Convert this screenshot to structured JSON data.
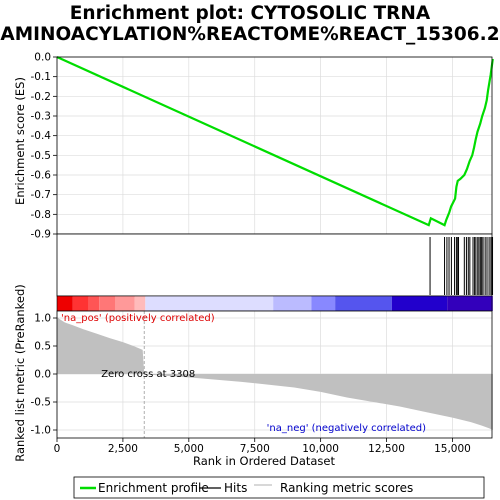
{
  "chart_data": {
    "type": "line",
    "title_line1": "Enrichment plot: CYTOSOLIC TRNA",
    "title_line2": "AMINOACYLATION%REACTOME%REACT_15306.2",
    "xlabel": "Rank in Ordered Dataset",
    "ylabel_top": "Enrichment score (ES)",
    "ylabel_bottom": "Ranked list metric (PreRanked)",
    "xlim": [
      0,
      16500
    ],
    "es_ylim": [
      -0.9,
      0.0
    ],
    "metric_ylim": [
      -1.0,
      1.0
    ],
    "x_ticks": [
      0,
      2500,
      5000,
      7500,
      10000,
      12500,
      15000
    ],
    "x_tick_labels": [
      "0",
      "2,500",
      "5,000",
      "7,500",
      "10,000",
      "12,500",
      "15,000"
    ],
    "es_ticks": [
      0.0,
      -0.1,
      -0.2,
      -0.3,
      -0.4,
      -0.5,
      -0.6,
      -0.7,
      -0.8,
      -0.9
    ],
    "es_tick_labels": [
      "0.0",
      "-0.1",
      "-0.2",
      "-0.3",
      "-0.4",
      "-0.5",
      "-0.6",
      "-0.7",
      "-0.8",
      "-0.9"
    ],
    "metric_ticks": [
      1.0,
      0.5,
      0.0,
      -0.5,
      -1.0
    ],
    "metric_tick_labels": [
      "1.0",
      "0.5",
      "0.0",
      "-0.5",
      "-1.0"
    ],
    "enrichment_profile": {
      "name": "Enrichment profile",
      "color": "#00dd00",
      "points": [
        [
          0,
          0.0
        ],
        [
          14100,
          -0.855
        ],
        [
          14180,
          -0.82
        ],
        [
          14700,
          -0.855
        ],
        [
          14760,
          -0.83
        ],
        [
          14820,
          -0.81
        ],
        [
          14880,
          -0.79
        ],
        [
          14950,
          -0.76
        ],
        [
          15100,
          -0.72
        ],
        [
          15150,
          -0.66
        ],
        [
          15200,
          -0.63
        ],
        [
          15300,
          -0.62
        ],
        [
          15450,
          -0.6
        ],
        [
          15550,
          -0.57
        ],
        [
          15650,
          -0.53
        ],
        [
          15750,
          -0.5
        ],
        [
          15820,
          -0.46
        ],
        [
          15880,
          -0.42
        ],
        [
          15950,
          -0.38
        ],
        [
          16050,
          -0.34
        ],
        [
          16130,
          -0.3
        ],
        [
          16230,
          -0.26
        ],
        [
          16300,
          -0.22
        ],
        [
          16350,
          -0.17
        ],
        [
          16400,
          -0.13
        ],
        [
          16450,
          -0.09
        ],
        [
          16490,
          -0.05
        ],
        [
          16530,
          -0.01
        ]
      ]
    },
    "hits": {
      "name": "Hits",
      "color": "#000000",
      "ranks": [
        14150,
        14700,
        14790,
        14870,
        14960,
        15080,
        15150,
        15200,
        15230,
        15450,
        15530,
        15600,
        15660,
        15780,
        15840,
        15890,
        15960,
        16010,
        16070,
        16110,
        16160,
        16240,
        16310,
        16390,
        16460,
        16520
      ]
    },
    "ranking_metric": {
      "name": "Ranking metric scores",
      "color": "#c0c0c0",
      "x": [
        0,
        100,
        300,
        600,
        1000,
        1500,
        2000,
        2500,
        2900,
        3250,
        3308,
        3400,
        4000,
        5000,
        6000,
        7000,
        8000,
        9000,
        10000,
        11000,
        12000,
        13000,
        14000,
        15000,
        15700,
        16100,
        16400,
        16530
      ],
      "values": [
        1.02,
        0.98,
        0.92,
        0.87,
        0.8,
        0.72,
        0.64,
        0.57,
        0.5,
        0.43,
        0.0,
        -0.01,
        -0.03,
        -0.06,
        -0.1,
        -0.14,
        -0.19,
        -0.24,
        -0.32,
        -0.42,
        -0.5,
        -0.58,
        -0.68,
        -0.78,
        -0.86,
        -0.92,
        -0.97,
        -1.0
      ]
    },
    "zero_cross_label": "Zero cross at 3308",
    "zero_cross_rank": 3308,
    "pos_label": "'na_pos' (positively correlated)",
    "pos_color": "#dd0000",
    "neg_label": "'na_neg' (negatively correlated)",
    "neg_color": "#0000cc",
    "heatmap_colors": [
      "#ee0000",
      "#ff3333",
      "#ff5555",
      "#ff7777",
      "#ff9999",
      "#ffbbbb",
      "#ddddff",
      "#bbbbff",
      "#8888ff",
      "#5555ee",
      "#2200cc",
      "#3300bb"
    ],
    "heatmap_segments": [
      0,
      600,
      1200,
      1600,
      2200,
      2950,
      3350,
      8200,
      9650,
      10550,
      12700,
      14800,
      16530
    ],
    "legend": {
      "items": [
        {
          "label": "Enrichment profile",
          "color": "#00dd00"
        },
        {
          "label": "Hits",
          "color": "#000000"
        },
        {
          "label": "Ranking metric scores",
          "color": "#c0c0c0"
        }
      ],
      "placement": "bottom"
    }
  }
}
